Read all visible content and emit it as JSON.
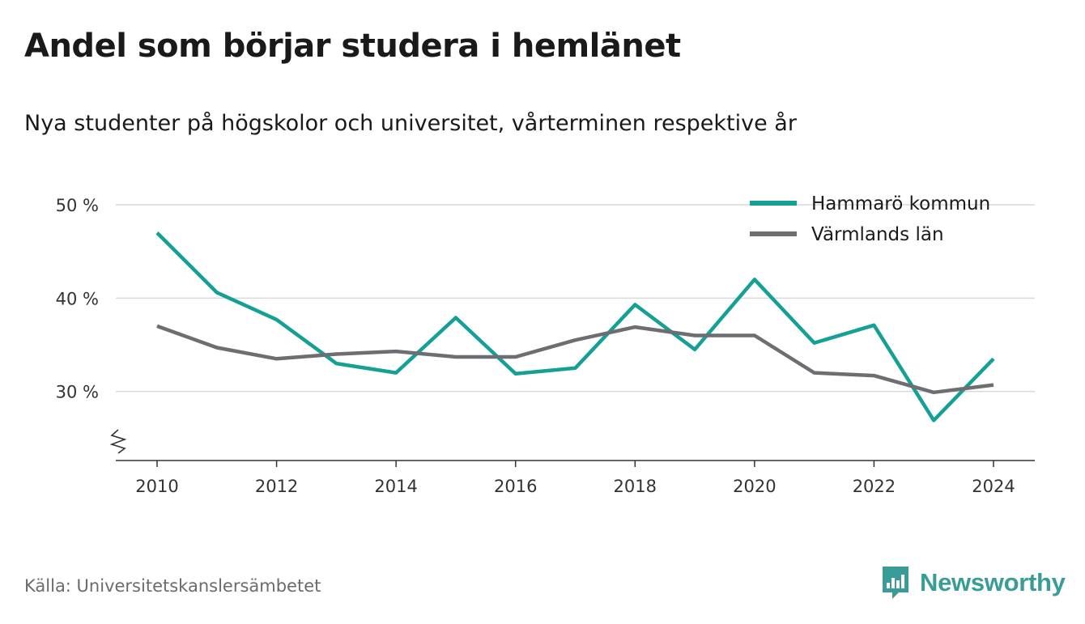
{
  "title": "Andel som börjar studera i hemlänet",
  "subtitle": "Nya studenter på högskolor och universitet, vårterminen respektive år",
  "source": "Källa: Universitetskanslersämbetet",
  "brand": {
    "name": "Newsworthy",
    "icon": "newsworthy-logo-icon",
    "color": "#3a9c96"
  },
  "chart_data": {
    "type": "line",
    "x": [
      2010,
      2011,
      2012,
      2013,
      2014,
      2015,
      2016,
      2017,
      2018,
      2019,
      2020,
      2021,
      2022,
      2023,
      2024
    ],
    "x_ticks": [
      2010,
      2012,
      2014,
      2016,
      2018,
      2020,
      2022,
      2024
    ],
    "y_ticks": [
      30,
      40,
      50
    ],
    "y_tick_labels": [
      "30 %",
      "40 %",
      "50 %"
    ],
    "ylim": [
      22.6,
      50
    ],
    "y_axis_broken": true,
    "grid": true,
    "legend_position": "top-right",
    "series": [
      {
        "name": "Hammarö kommun",
        "color": "#14a095",
        "values": [
          47.0,
          40.6,
          37.7,
          33.0,
          32.0,
          37.9,
          31.9,
          32.5,
          39.3,
          34.5,
          42.0,
          35.2,
          37.1,
          26.9,
          33.5
        ]
      },
      {
        "name": "Värmlands län",
        "color": "#6e6d72",
        "values": [
          37.0,
          34.7,
          33.5,
          34.0,
          34.3,
          33.7,
          33.7,
          35.5,
          36.9,
          36.0,
          36.0,
          32.0,
          31.7,
          29.9,
          30.7
        ]
      }
    ]
  }
}
